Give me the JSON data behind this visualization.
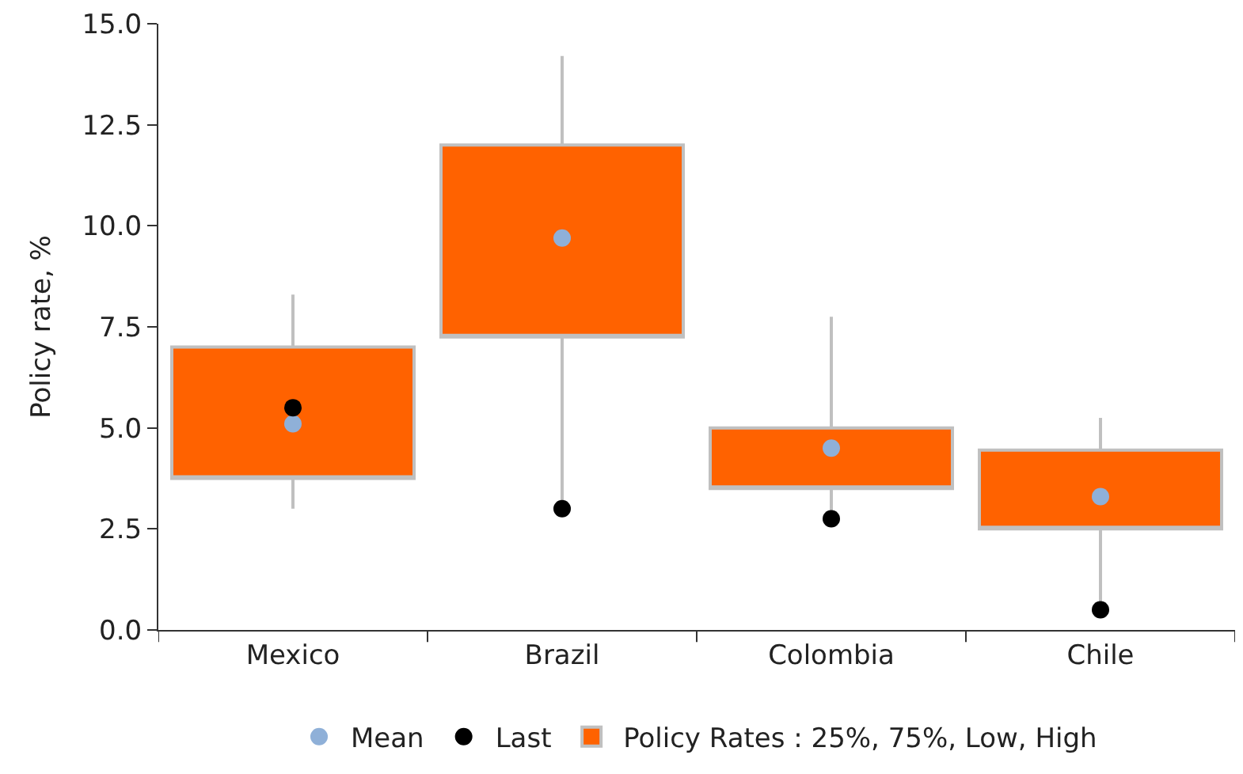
{
  "chart_data": {
    "type": "box",
    "ylabel": "Policy rate, %",
    "categories": [
      "Mexico",
      "Brazil",
      "Colombia",
      "Chile"
    ],
    "ylim": [
      0,
      15
    ],
    "yticks": [
      {
        "value": 0,
        "label": "0.0"
      },
      {
        "value": 2.5,
        "label": "2.5"
      },
      {
        "value": 5,
        "label": "5.0"
      },
      {
        "value": 7.5,
        "label": "7.5"
      },
      {
        "value": 10,
        "label": "10.0"
      },
      {
        "value": 12.5,
        "label": "12.5"
      },
      {
        "value": 15,
        "label": "15.0"
      }
    ],
    "legend": "bottom",
    "series": [
      {
        "type": "scatter",
        "name": "Mean",
        "color": "#8fb0d8",
        "marker": "circle",
        "x": [
          "Mexico",
          "Brazil",
          "Colombia",
          "Chile"
        ],
        "values": [
          5.1,
          9.7,
          4.5,
          3.3
        ]
      },
      {
        "type": "scatter",
        "name": "Last",
        "color": "#000000",
        "marker": "circle",
        "x": [
          "Mexico",
          "Brazil",
          "Colombia",
          "Chile"
        ],
        "values": [
          5.5,
          3.0,
          2.75,
          0.5
        ]
      },
      {
        "name": "Policy Rates : 25%, 75%, Low, High",
        "color": "#ff6200",
        "boxes": [
          {
            "low": 3.0,
            "q1": 3.75,
            "q3": 7.0,
            "high": 8.3
          },
          {
            "low": 3.0,
            "q1": 7.25,
            "q3": 12.0,
            "high": 14.2
          },
          {
            "low": 2.75,
            "q1": 3.5,
            "q3": 5.0,
            "high": 7.75
          },
          {
            "low": 0.5,
            "q1": 2.5,
            "q3": 4.45,
            "high": 5.25
          }
        ]
      }
    ]
  }
}
